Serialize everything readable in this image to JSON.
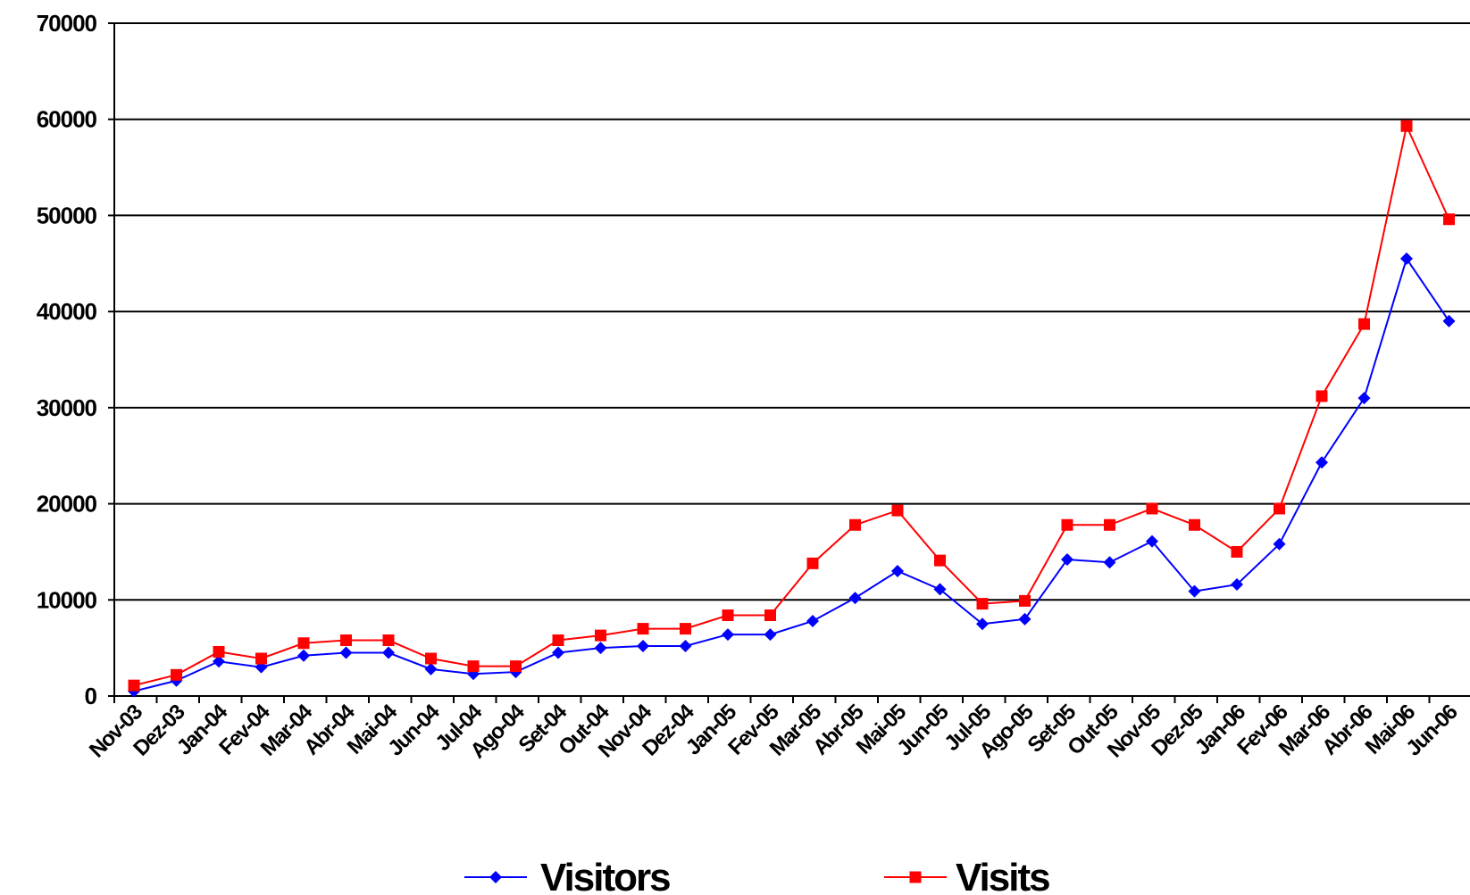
{
  "chart_data": {
    "type": "line",
    "categories": [
      "Nov-03",
      "Dez-03",
      "Jan-04",
      "Fev-04",
      "Mar-04",
      "Abr-04",
      "Mai-04",
      "Jun-04",
      "Jul-04",
      "Ago-04",
      "Set-04",
      "Out-04",
      "Nov-04",
      "Dez-04",
      "Jan-05",
      "Fev-05",
      "Mar-05",
      "Abr-05",
      "Mai-05",
      "Jun-05",
      "Jul-05",
      "Ago-05",
      "Set-05",
      "Out-05",
      "Nov-05",
      "Dez-05",
      "Jan-06",
      "Fev-06",
      "Mar-06",
      "Abr-06",
      "Mai-06",
      "Jun-06"
    ],
    "series": [
      {
        "name": "Visitors",
        "color": "#0000ff",
        "marker": "diamond",
        "values": [
          500,
          1600,
          3600,
          3000,
          4200,
          4500,
          4500,
          2800,
          2300,
          2500,
          4500,
          5000,
          5200,
          5200,
          6400,
          6400,
          7800,
          10200,
          13000,
          11100,
          7500,
          8000,
          14200,
          13900,
          16100,
          10900,
          11600,
          15800,
          24300,
          31000,
          45500,
          39000
        ]
      },
      {
        "name": "Visits",
        "color": "#ff0000",
        "marker": "square",
        "values": [
          1100,
          2200,
          4600,
          3900,
          5500,
          5800,
          5800,
          3900,
          3100,
          3100,
          5800,
          6300,
          7000,
          7000,
          8400,
          8400,
          13800,
          17800,
          19300,
          14100,
          9600,
          9900,
          17800,
          17800,
          19500,
          17800,
          15000,
          19500,
          31200,
          38700,
          59300,
          49600
        ]
      }
    ],
    "ylim": [
      0,
      70000
    ],
    "yticks": [
      "0",
      "10000",
      "20000",
      "30000",
      "40000",
      "50000",
      "60000",
      "70000"
    ],
    "grid": true,
    "legend": "bottom-center"
  }
}
